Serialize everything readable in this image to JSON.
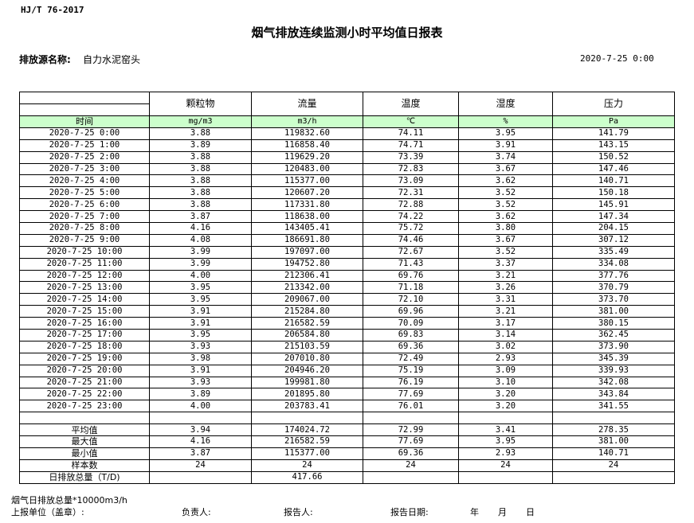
{
  "standard": "HJ/T  76-2017",
  "title": "烟气排放连续监测小时平均值日报表",
  "source_label": "排放源名称:",
  "source_value": "自力水泥窑头",
  "report_date": "2020-7-25 0:00",
  "columns": [
    "颗粒物",
    "流量",
    "温度",
    "湿度",
    "压力"
  ],
  "time_label": "时间",
  "units": [
    "mg/m3",
    "m3/h",
    "℃",
    "%",
    "Pa"
  ],
  "unit_row_color": "#ccffcc",
  "rows": [
    [
      "2020-7-25 0:00",
      "3.88",
      "119832.60",
      "74.11",
      "3.95",
      "141.79"
    ],
    [
      "2020-7-25 1:00",
      "3.89",
      "116858.40",
      "74.71",
      "3.91",
      "143.15"
    ],
    [
      "2020-7-25 2:00",
      "3.88",
      "119629.20",
      "73.39",
      "3.74",
      "150.52"
    ],
    [
      "2020-7-25 3:00",
      "3.88",
      "120483.00",
      "72.83",
      "3.67",
      "147.46"
    ],
    [
      "2020-7-25 4:00",
      "3.88",
      "115377.00",
      "73.09",
      "3.62",
      "140.71"
    ],
    [
      "2020-7-25 5:00",
      "3.88",
      "120607.20",
      "72.31",
      "3.52",
      "150.18"
    ],
    [
      "2020-7-25 6:00",
      "3.88",
      "117331.80",
      "72.88",
      "3.52",
      "145.91"
    ],
    [
      "2020-7-25 7:00",
      "3.87",
      "118638.00",
      "74.22",
      "3.62",
      "147.34"
    ],
    [
      "2020-7-25 8:00",
      "4.16",
      "143405.41",
      "75.72",
      "3.80",
      "204.15"
    ],
    [
      "2020-7-25 9:00",
      "4.08",
      "186691.80",
      "74.46",
      "3.67",
      "307.12"
    ],
    [
      "2020-7-25 10:00",
      "3.99",
      "197097.00",
      "72.67",
      "3.52",
      "335.49"
    ],
    [
      "2020-7-25 11:00",
      "3.99",
      "194752.80",
      "71.43",
      "3.37",
      "334.08"
    ],
    [
      "2020-7-25 12:00",
      "4.00",
      "212306.41",
      "69.76",
      "3.21",
      "377.76"
    ],
    [
      "2020-7-25 13:00",
      "3.95",
      "213342.00",
      "71.18",
      "3.26",
      "370.79"
    ],
    [
      "2020-7-25 14:00",
      "3.95",
      "209067.00",
      "72.10",
      "3.31",
      "373.70"
    ],
    [
      "2020-7-25 15:00",
      "3.91",
      "215284.80",
      "69.96",
      "3.21",
      "381.00"
    ],
    [
      "2020-7-25 16:00",
      "3.91",
      "216582.59",
      "70.09",
      "3.17",
      "380.15"
    ],
    [
      "2020-7-25 17:00",
      "3.95",
      "206584.80",
      "69.83",
      "3.14",
      "362.45"
    ],
    [
      "2020-7-25 18:00",
      "3.93",
      "215103.59",
      "69.36",
      "3.02",
      "373.90"
    ],
    [
      "2020-7-25 19:00",
      "3.98",
      "207010.80",
      "72.49",
      "2.93",
      "345.39"
    ],
    [
      "2020-7-25 20:00",
      "3.91",
      "204946.20",
      "75.19",
      "3.09",
      "339.93"
    ],
    [
      "2020-7-25 21:00",
      "3.93",
      "199981.80",
      "76.19",
      "3.10",
      "342.08"
    ],
    [
      "2020-7-25 22:00",
      "3.89",
      "201895.80",
      "77.69",
      "3.20",
      "343.84"
    ],
    [
      "2020-7-25 23:00",
      "4.00",
      "203783.41",
      "76.01",
      "3.20",
      "341.55"
    ]
  ],
  "summary": [
    [
      "平均值",
      "3.94",
      "174024.72",
      "72.99",
      "3.41",
      "278.35"
    ],
    [
      "最大值",
      "4.16",
      "216582.59",
      "77.69",
      "3.95",
      "381.00"
    ],
    [
      "最小值",
      "3.87",
      "115377.00",
      "69.36",
      "2.93",
      "140.71"
    ],
    [
      "样本数",
      "24",
      "24",
      "24",
      "24",
      "24"
    ],
    [
      "日排放总量（T/D)",
      "",
      "417.66",
      "",
      "",
      ""
    ]
  ],
  "footer": {
    "note": "烟气日排放总量*10000m3/h",
    "unit_label": "上报单位（盖章）:",
    "responsible_label": "负责人:",
    "reporter_label": "报告人:",
    "date_label": "报告日期:",
    "year": "年",
    "month": "月",
    "day": "日"
  }
}
